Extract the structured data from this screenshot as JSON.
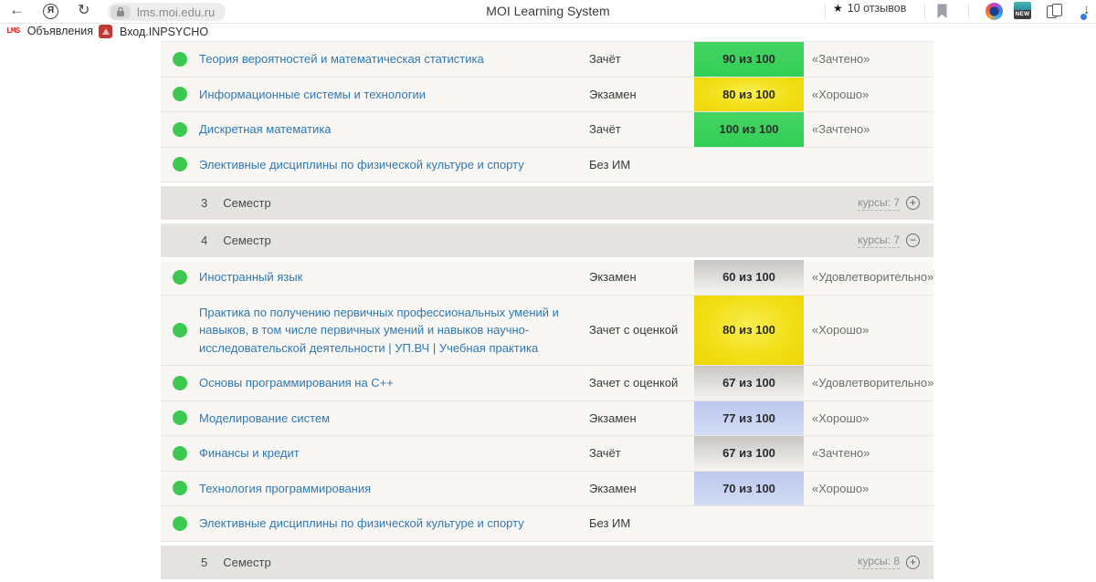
{
  "browser": {
    "url": "lms.moi.edu.ru",
    "title": "MOI Learning System",
    "reviews": {
      "star": "★",
      "label": "10 отзывов"
    },
    "new_badge": "NEW",
    "bookmarks": [
      {
        "icon_text": "LMS",
        "label": "Объявления"
      },
      {
        "label": "Вход.INPSYCHO"
      }
    ]
  },
  "colors": {
    "badge_green": "#3bd25b",
    "badge_yellow": "#f2df16",
    "badge_gray": "#d9d8d6",
    "badge_blue": "#c4d0f0",
    "link_blue": "#3078b4",
    "dot_green": "#3dc850",
    "rating_green": "#68c286",
    "rating_red": "#ee5a52",
    "row_bg": "#f8f7f3",
    "semester_bg": "#e6e4e1"
  },
  "table": {
    "rows": [
      {
        "kind": "course",
        "name": "Теория вероятностей и математическая статистика",
        "control": "Зачёт",
        "score": "90 из 100",
        "badge": "green",
        "grade": "«Зачтено»"
      },
      {
        "kind": "course",
        "name": "Информационные системы и технологии",
        "control": "Экзамен",
        "score": "80 из 100",
        "badge": "yellow",
        "grade": "«Хорошо»"
      },
      {
        "kind": "course",
        "name": "Дискретная математика",
        "control": "Зачёт",
        "score": "100 из 100",
        "badge": "green",
        "grade": "«Зачтено»"
      },
      {
        "kind": "course",
        "name": "Элективные дисциплины по физической культуре и спорту",
        "control": "Без ИМ",
        "score": "",
        "badge": null,
        "grade": ""
      },
      {
        "kind": "semester",
        "number": "3",
        "label": "Семестр",
        "courses_label": "курсы: 7",
        "expanded": false
      },
      {
        "kind": "semester",
        "number": "4",
        "label": "Семестр",
        "courses_label": "курсы: 7",
        "expanded": true
      },
      {
        "kind": "course",
        "name": "Иностранный язык",
        "control": "Экзамен",
        "score": "60 из 100",
        "badge": "gray",
        "grade": "«Удовлетворительно»"
      },
      {
        "kind": "course",
        "name": "Практика по получению первичных профессиональных умений и навыков, в том числе первичных умений и навыков научно-исследовательской деятельности | УП.ВЧ | Учебная практика",
        "control": "Зачет с оценкой",
        "score": "80 из 100",
        "badge": "yellow",
        "grade": "«Хорошо»"
      },
      {
        "kind": "course",
        "name": "Основы программирования на C++",
        "control": "Зачет с оценкой",
        "score": "67 из 100",
        "badge": "gray",
        "grade": "«Удовлетворительно»"
      },
      {
        "kind": "course",
        "name": "Моделирование систем",
        "control": "Экзамен",
        "score": "77 из 100",
        "badge": "blue",
        "grade": "«Хорошо»"
      },
      {
        "kind": "course",
        "name": "Финансы и кредит",
        "control": "Зачёт",
        "score": "67 из 100",
        "badge": "gray",
        "grade": "«Зачтено»"
      },
      {
        "kind": "course",
        "name": "Технология программирования",
        "control": "Экзамен",
        "score": "70 из 100",
        "badge": "blue",
        "grade": "«Хорошо»"
      },
      {
        "kind": "course",
        "name": "Элективные дисциплины по физической культуре и спорту",
        "control": "Без ИМ",
        "score": "",
        "badge": null,
        "grade": ""
      },
      {
        "kind": "semester",
        "number": "5",
        "label": "Семестр",
        "courses_label": "курсы: 8",
        "expanded": false
      }
    ]
  }
}
